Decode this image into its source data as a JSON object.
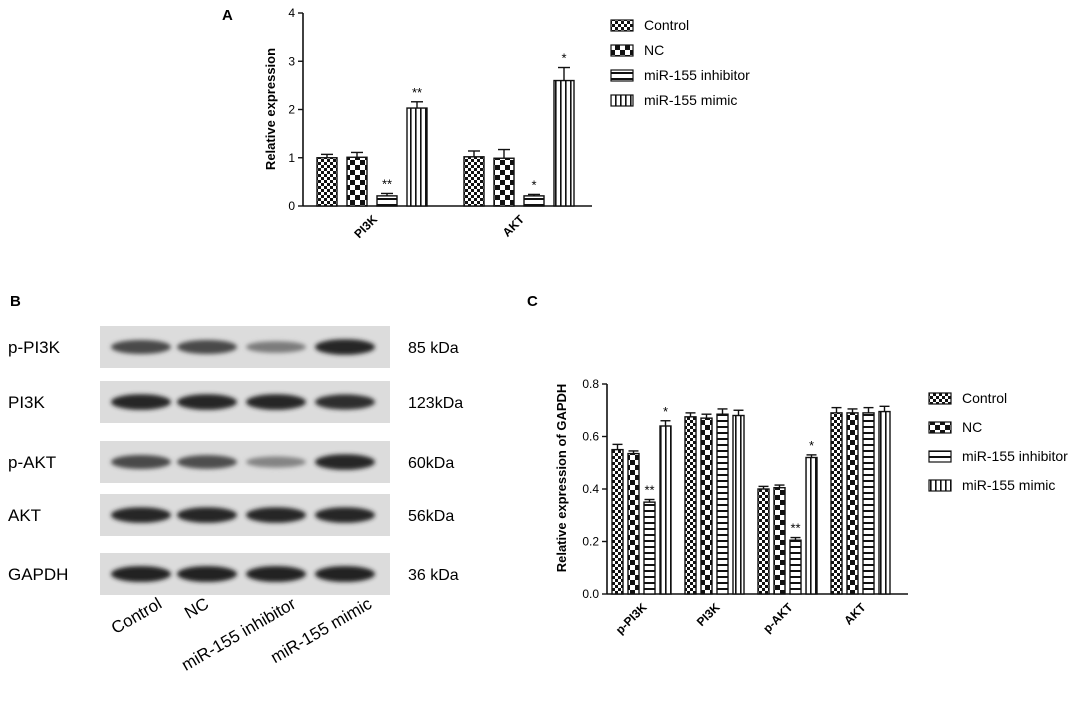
{
  "patterns": [
    "checker",
    "checker-big",
    "hstripe",
    "vstripe"
  ],
  "colors": {
    "ink": "#111111",
    "blot_bg": "#dcdcdc",
    "band": "#3a3a3a"
  },
  "panel_a": {
    "letter": "A",
    "ylabel": "Relative expression",
    "legend": [
      "Control",
      "NC",
      "miR-155 inhibitor",
      "miR-155 mimic"
    ]
  },
  "panel_b": {
    "letter": "B",
    "rows": [
      {
        "label": "p-PI3K",
        "kda": "85 kDa",
        "intensity": [
          0.75,
          0.75,
          0.45,
          0.95
        ]
      },
      {
        "label": "PI3K",
        "kda": "123kDa",
        "intensity": [
          0.95,
          0.95,
          0.95,
          0.9
        ]
      },
      {
        "label": "p-AKT",
        "kda": "60kDa",
        "intensity": [
          0.75,
          0.72,
          0.4,
          0.95
        ]
      },
      {
        "label": "AKT",
        "kda": "56kDa",
        "intensity": [
          0.95,
          0.95,
          0.95,
          0.95
        ]
      },
      {
        "label": "GAPDH",
        "kda": "36 kDa",
        "intensity": [
          0.98,
          0.98,
          0.98,
          0.98
        ]
      }
    ],
    "lanes": [
      "Control",
      "NC",
      "miR-155 inhibitor",
      "miR-155 mimic"
    ]
  },
  "panel_c": {
    "letter": "C",
    "ylabel": "Relative expression of GAPDH",
    "legend": [
      "Control",
      "NC",
      "miR-155 inhibitor",
      "miR-155 mimic"
    ]
  },
  "chart_data": [
    {
      "type": "bar",
      "panel": "A",
      "title": "",
      "xlabel": "",
      "ylabel": "Relative expression",
      "categories": [
        "PI3K",
        "AKT"
      ],
      "ylim": [
        0,
        4
      ],
      "yticks": [
        "0",
        "1",
        "2",
        "3",
        "4"
      ],
      "grid": false,
      "legend_position": "right",
      "series": [
        {
          "name": "Control",
          "values": [
            1.0,
            1.02
          ],
          "errors": [
            0.07,
            0.12
          ],
          "sig": [
            "",
            ""
          ]
        },
        {
          "name": "NC",
          "values": [
            1.01,
            0.99
          ],
          "errors": [
            0.1,
            0.18
          ],
          "sig": [
            "",
            ""
          ]
        },
        {
          "name": "miR-155 inhibitor",
          "values": [
            0.21,
            0.21
          ],
          "errors": [
            0.05,
            0.03
          ],
          "sig": [
            "**",
            "*"
          ]
        },
        {
          "name": "miR-155 mimic",
          "values": [
            2.03,
            2.6
          ],
          "errors": [
            0.13,
            0.27
          ],
          "sig": [
            "**",
            "*"
          ]
        }
      ]
    },
    {
      "type": "bar",
      "panel": "C",
      "title": "",
      "xlabel": "",
      "ylabel": "Relative expression of GAPDH",
      "categories": [
        "p-PI3K",
        "PI3K",
        "p-AKT",
        "AKT"
      ],
      "ylim": [
        0,
        0.8
      ],
      "yticks": [
        "0.0",
        "0.2",
        "0.4",
        "0.6",
        "0.8"
      ],
      "grid": false,
      "legend_position": "right",
      "series": [
        {
          "name": "Control",
          "values": [
            0.55,
            0.675,
            0.4,
            0.69
          ],
          "errors": [
            0.02,
            0.015,
            0.01,
            0.02
          ],
          "sig": [
            "",
            "",
            "",
            ""
          ]
        },
        {
          "name": "NC",
          "values": [
            0.535,
            0.67,
            0.405,
            0.69
          ],
          "errors": [
            0.01,
            0.015,
            0.01,
            0.015
          ],
          "sig": [
            "",
            "",
            "",
            ""
          ]
        },
        {
          "name": "miR-155 inhibitor",
          "values": [
            0.35,
            0.685,
            0.205,
            0.69
          ],
          "errors": [
            0.01,
            0.02,
            0.01,
            0.02
          ],
          "sig": [
            "**",
            "",
            "**",
            ""
          ]
        },
        {
          "name": "miR-155 mimic",
          "values": [
            0.64,
            0.68,
            0.52,
            0.695
          ],
          "errors": [
            0.02,
            0.02,
            0.01,
            0.02
          ],
          "sig": [
            "*",
            "",
            "*",
            ""
          ]
        }
      ]
    }
  ]
}
